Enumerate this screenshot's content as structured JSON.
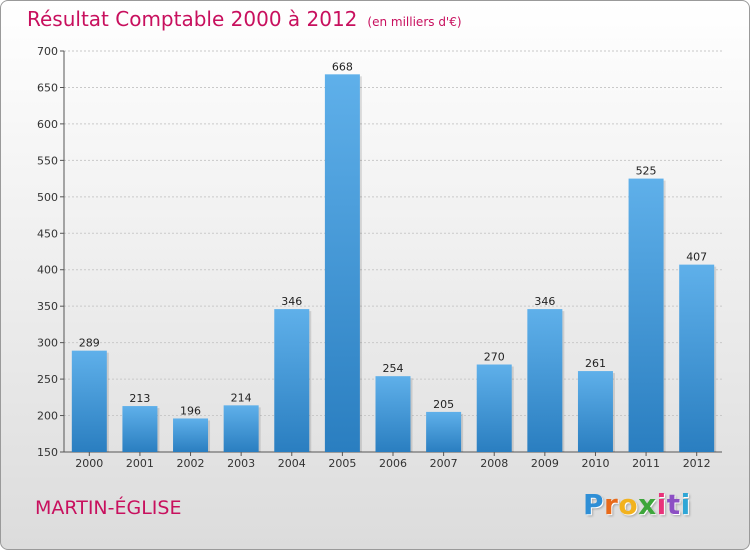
{
  "header": {
    "title": "Résultat Comptable 2000 à 2012",
    "subtitle": "(en milliers d'€)"
  },
  "footer": {
    "place": "MARTIN-ÉGLISE",
    "logo_letters": [
      "P",
      "r",
      "o",
      "x",
      "i",
      "t",
      "i"
    ],
    "logo_colors": [
      "#2f8fd6",
      "#e86a1a",
      "#f2b21e",
      "#3da63a",
      "#e8327a",
      "#8c4fc4",
      "#2fa6d6"
    ]
  },
  "chart_data": {
    "type": "bar",
    "title": "Résultat Comptable 2000 à 2012",
    "subtitle": "(en milliers d'€)",
    "categories": [
      "2000",
      "2001",
      "2002",
      "2003",
      "2004",
      "2005",
      "2006",
      "2007",
      "2008",
      "2009",
      "2010",
      "2011",
      "2012"
    ],
    "values": [
      289,
      213,
      196,
      214,
      346,
      668,
      254,
      205,
      270,
      346,
      261,
      525,
      407
    ],
    "ylim": [
      150,
      700
    ],
    "yticks": [
      150,
      200,
      250,
      300,
      350,
      400,
      450,
      500,
      550,
      600,
      650,
      700
    ],
    "grid": true,
    "bar_color_top": "#5fb0ea",
    "bar_color_bottom": "#2a7ec0"
  }
}
